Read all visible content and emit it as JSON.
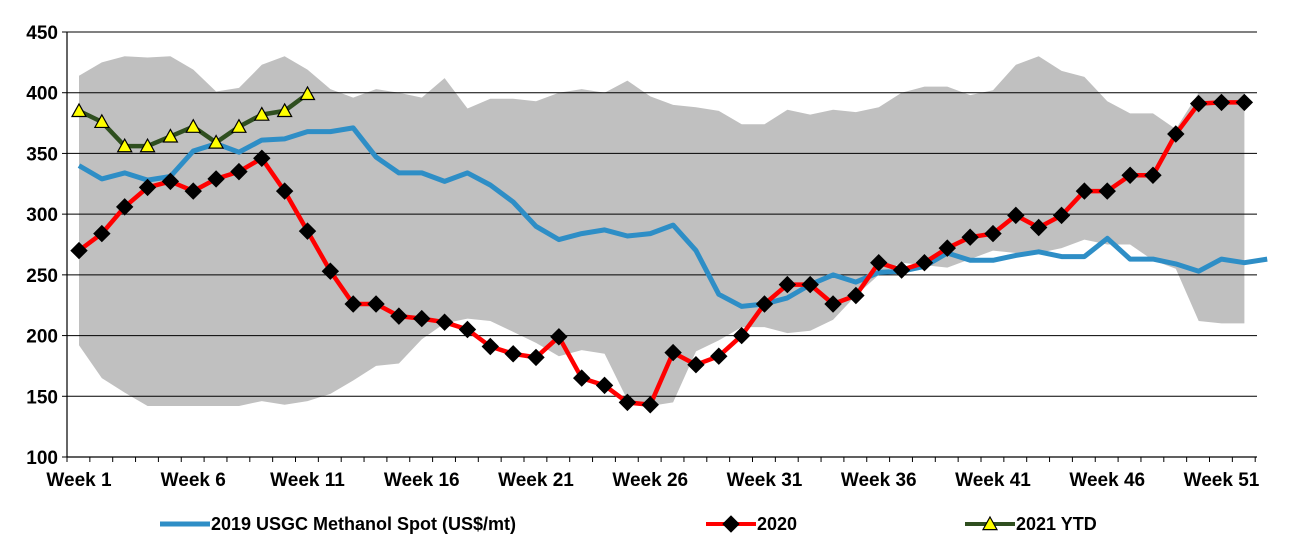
{
  "chart_data": {
    "type": "line",
    "ylim": [
      100,
      450
    ],
    "y_ticks": [
      100,
      150,
      200,
      250,
      300,
      350,
      400,
      450
    ],
    "x_tick_labels": [
      "Week 1",
      "Week 6",
      "Week 11",
      "Week 16",
      "Week 21",
      "Week 26",
      "Week 31",
      "Week 36",
      "Week 41",
      "Week 46",
      "Week 51"
    ],
    "x_tick_weeks": [
      1,
      6,
      11,
      16,
      21,
      26,
      31,
      36,
      41,
      46,
      51
    ],
    "grid": "horizontal",
    "legend_position": "bottom",
    "band": {
      "color": "#c0c0c0",
      "upper": [
        414,
        425,
        430,
        429,
        430,
        419,
        401,
        404,
        423,
        430,
        419,
        403,
        396,
        403,
        400,
        396,
        412,
        387,
        395,
        395,
        393,
        400,
        403,
        400,
        410,
        397,
        390,
        388,
        385,
        374,
        374,
        386,
        382,
        386,
        384,
        388,
        400,
        405,
        405,
        398,
        402,
        423,
        430,
        418,
        413,
        393,
        383,
        383,
        370,
        400,
        400,
        400
      ],
      "lower": [
        192,
        165,
        153,
        142,
        142,
        142,
        142,
        142,
        146,
        143,
        146,
        152,
        163,
        175,
        177,
        197,
        210,
        214,
        212,
        203,
        194,
        183,
        188,
        185,
        147,
        142,
        145,
        187,
        196,
        207,
        207,
        202,
        204,
        213,
        233,
        250,
        260,
        258,
        256,
        263,
        270,
        268,
        268,
        272,
        279,
        275,
        275,
        262,
        255,
        212,
        210,
        210
      ]
    },
    "series": [
      {
        "name": "2019 USGC Methanol Spot (US$/mt)",
        "color": "#2e8ec6",
        "marker": "none",
        "values": [
          340,
          329,
          334,
          328,
          331,
          352,
          358,
          351,
          361,
          362,
          368,
          368,
          371,
          347,
          334,
          334,
          327,
          334,
          324,
          310,
          290,
          279,
          284,
          287,
          282,
          284,
          291,
          270,
          234,
          224,
          226,
          231,
          242,
          250,
          244,
          252,
          253,
          257,
          268,
          262,
          262,
          266,
          269,
          265,
          265,
          280,
          263,
          263,
          259,
          253,
          263,
          260,
          263
        ]
      },
      {
        "name": "2020",
        "color": "#ff0000",
        "marker": "diamond",
        "values": [
          270,
          284,
          306,
          322,
          327,
          319,
          329,
          335,
          346,
          319,
          286,
          253,
          226,
          226,
          216,
          214,
          211,
          205,
          191,
          185,
          182,
          199,
          165,
          159,
          145,
          143,
          186,
          176,
          183,
          200,
          226,
          242,
          242,
          226,
          233,
          260,
          254,
          260,
          272,
          281,
          284,
          299,
          289,
          299,
          319,
          319,
          332,
          332,
          366,
          391,
          392,
          392
        ]
      },
      {
        "name": "2021 YTD",
        "color": "#2f4f1f",
        "marker": "triangle",
        "marker_fill": "#ffff00",
        "values": [
          385,
          376,
          356,
          356,
          364,
          372,
          359,
          372,
          382,
          385,
          399
        ]
      }
    ]
  }
}
